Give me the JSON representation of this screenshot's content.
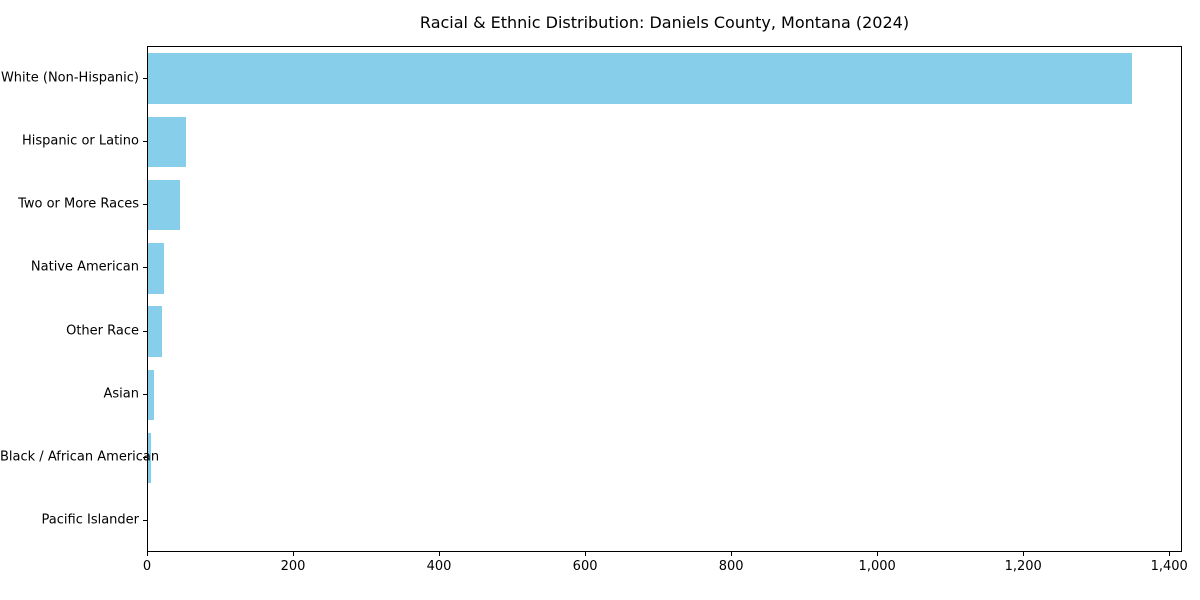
{
  "chart_data": {
    "type": "bar",
    "orientation": "horizontal",
    "title": "Racial & Ethnic Distribution: Daniels County, Montana (2024)",
    "categories": [
      "White (Non-Hispanic)",
      "Hispanic or Latino",
      "Two or More Races",
      "Native American",
      "Other Race",
      "Asian",
      "Black / African American",
      "Pacific Islander"
    ],
    "values": [
      1350,
      52,
      44,
      22,
      19,
      8,
      4,
      0
    ],
    "xlabel": "",
    "ylabel": "",
    "xlim": [
      0,
      1417.5
    ],
    "xticks": [
      0,
      200,
      400,
      600,
      800,
      1000,
      1200,
      1400
    ],
    "xtick_labels": [
      "0",
      "200",
      "400",
      "600",
      "800",
      "1,000",
      "1,200",
      "1,400"
    ],
    "bar_color": "#87CEEB",
    "axis_color": "#000000",
    "background_color": "#ffffff",
    "grid": false,
    "legend": null
  }
}
